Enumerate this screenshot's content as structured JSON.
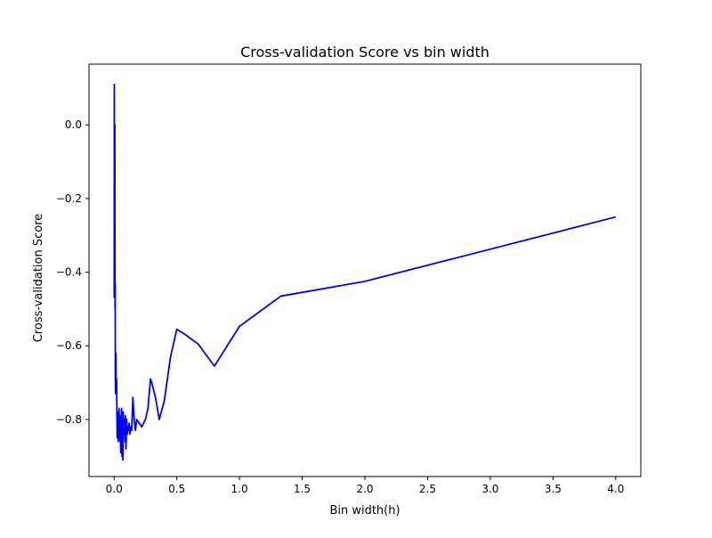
{
  "chart_data": {
    "type": "line",
    "title": "Cross-validation Score vs bin width",
    "xlabel": "Bin width(h)",
    "ylabel": "Cross-validation Score",
    "xlim": [
      -0.2,
      4.2
    ],
    "ylim": [
      -0.955,
      0.165
    ],
    "xticks": [
      0.0,
      0.5,
      1.0,
      1.5,
      2.0,
      2.5,
      3.0,
      3.5,
      4.0
    ],
    "xtick_labels": [
      "0.0",
      "0.5",
      "1.0",
      "1.5",
      "2.0",
      "2.5",
      "3.0",
      "3.5",
      "4.0"
    ],
    "yticks": [
      0.0,
      -0.2,
      -0.4,
      -0.6,
      -0.8
    ],
    "ytick_labels": [
      "0.0",
      "−0.2",
      "−0.4",
      "−0.6",
      "−0.8"
    ],
    "grid": false,
    "line_color": "#0000ff",
    "series": [
      {
        "x": [
          0.001,
          0.002,
          0.003,
          0.004,
          0.005,
          0.006,
          0.007,
          0.008,
          0.009,
          0.01,
          0.012,
          0.014,
          0.016,
          0.018,
          0.02,
          0.022,
          0.025,
          0.028,
          0.03,
          0.033,
          0.036,
          0.04,
          0.043,
          0.045,
          0.048,
          0.05,
          0.053,
          0.056,
          0.06,
          0.063,
          0.066,
          0.07,
          0.073,
          0.076,
          0.08,
          0.083,
          0.087,
          0.09,
          0.095,
          0.1,
          0.105,
          0.11,
          0.115,
          0.12,
          0.125,
          0.13,
          0.14,
          0.15,
          0.16,
          0.17,
          0.18,
          0.2,
          0.22,
          0.25,
          0.27,
          0.29,
          0.3,
          0.33,
          0.36,
          0.4,
          0.45,
          0.5,
          0.57,
          0.67,
          0.8,
          1.0,
          1.33,
          2.0,
          4.0
        ],
        "y": [
          -0.47,
          0.11,
          -0.2,
          -0.03,
          -0.45,
          0.0,
          -0.36,
          -0.5,
          -0.43,
          -0.68,
          -0.73,
          -0.62,
          -0.72,
          -0.7,
          -0.69,
          -0.76,
          -0.85,
          -0.78,
          -0.83,
          -0.86,
          -0.8,
          -0.77,
          -0.85,
          -0.79,
          -0.86,
          -0.84,
          -0.89,
          -0.82,
          -0.77,
          -0.9,
          -0.8,
          -0.91,
          -0.78,
          -0.82,
          -0.84,
          -0.8,
          -0.86,
          -0.79,
          -0.88,
          -0.8,
          -0.84,
          -0.82,
          -0.83,
          -0.81,
          -0.84,
          -0.82,
          -0.83,
          -0.74,
          -0.8,
          -0.83,
          -0.8,
          -0.81,
          -0.82,
          -0.8,
          -0.77,
          -0.69,
          -0.7,
          -0.74,
          -0.8,
          -0.75,
          -0.63,
          -0.555,
          -0.57,
          -0.595,
          -0.655,
          -0.547,
          -0.465,
          -0.425,
          -0.25
        ]
      }
    ]
  }
}
